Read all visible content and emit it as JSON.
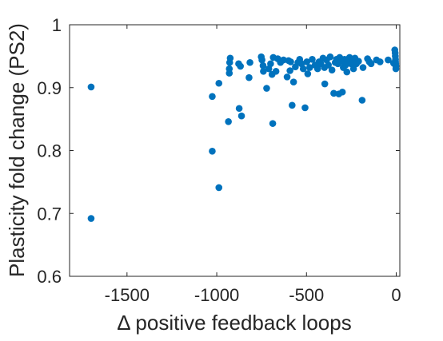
{
  "chart_data": {
    "type": "scatter",
    "title": "",
    "xlabel": "Δ positive feedback loops",
    "ylabel": "Plasticity fold change (PS2)",
    "xlim": [
      -1820,
      20
    ],
    "ylim": [
      0.6,
      1.0
    ],
    "xticks": [
      -1500,
      -1000,
      -500,
      0
    ],
    "xtick_labels": [
      "-1500",
      "-1000",
      "-500",
      "0"
    ],
    "yticks": [
      0.6,
      0.7,
      0.8,
      0.9,
      1.0
    ],
    "ytick_labels": [
      "0.6",
      "0.7",
      "0.8",
      "0.9",
      "1"
    ],
    "grid": false,
    "marker_color": "#0072BD",
    "series": [
      {
        "points": [
          [
            -1700,
            0.901
          ],
          [
            -1700,
            0.692
          ],
          [
            -1025,
            0.886
          ],
          [
            -1025,
            0.799
          ],
          [
            -988,
            0.907
          ],
          [
            -988,
            0.741
          ],
          [
            -935,
            0.846
          ],
          [
            -930,
            0.923
          ],
          [
            -930,
            0.93
          ],
          [
            -928,
            0.94
          ],
          [
            -925,
            0.947
          ],
          [
            -878,
            0.938
          ],
          [
            -875,
            0.867
          ],
          [
            -868,
            0.934
          ],
          [
            -862,
            0.855
          ],
          [
            -820,
            0.916
          ],
          [
            -815,
            0.94
          ],
          [
            -752,
            0.949
          ],
          [
            -748,
            0.944
          ],
          [
            -742,
            0.935
          ],
          [
            -740,
            0.926
          ],
          [
            -722,
            0.899
          ],
          [
            -710,
            0.93
          ],
          [
            -700,
            0.938
          ],
          [
            -692,
            0.921
          ],
          [
            -688,
            0.843
          ],
          [
            -685,
            0.948
          ],
          [
            -670,
            0.926
          ],
          [
            -660,
            0.946
          ],
          [
            -645,
            0.94
          ],
          [
            -628,
            0.944
          ],
          [
            -608,
            0.917
          ],
          [
            -600,
            0.943
          ],
          [
            -592,
            0.927
          ],
          [
            -588,
            0.941
          ],
          [
            -580,
            0.872
          ],
          [
            -572,
            0.909
          ],
          [
            -562,
            0.933
          ],
          [
            -548,
            0.94
          ],
          [
            -538,
            0.945
          ],
          [
            -528,
            0.938
          ],
          [
            -518,
            0.93
          ],
          [
            -508,
            0.868
          ],
          [
            -498,
            0.941
          ],
          [
            -493,
            0.922
          ],
          [
            -482,
            0.932
          ],
          [
            -468,
            0.945
          ],
          [
            -452,
            0.936
          ],
          [
            -438,
            0.93
          ],
          [
            -430,
            0.941
          ],
          [
            -420,
            0.938
          ],
          [
            -408,
            0.947
          ],
          [
            -400,
            0.932
          ],
          [
            -398,
            0.906
          ],
          [
            -388,
            0.944
          ],
          [
            -378,
            0.936
          ],
          [
            -368,
            0.949
          ],
          [
            -358,
            0.928
          ],
          [
            -348,
            0.891
          ],
          [
            -340,
            0.94
          ],
          [
            -333,
            0.945
          ],
          [
            -325,
            0.938
          ],
          [
            -320,
            0.89
          ],
          [
            -315,
            0.948
          ],
          [
            -305,
            0.942
          ],
          [
            -300,
            0.893
          ],
          [
            -295,
            0.932
          ],
          [
            -288,
            0.945
          ],
          [
            -282,
            0.936
          ],
          [
            -275,
            0.925
          ],
          [
            -268,
            0.941
          ],
          [
            -260,
            0.948
          ],
          [
            -252,
            0.938
          ],
          [
            -245,
            0.943
          ],
          [
            -238,
            0.93
          ],
          [
            -230,
            0.947
          ],
          [
            -222,
            0.938
          ],
          [
            -210,
            0.942
          ],
          [
            -190,
            0.88
          ],
          [
            -185,
            0.932
          ],
          [
            -160,
            0.946
          ],
          [
            -150,
            0.941
          ],
          [
            -140,
            0.938
          ],
          [
            -110,
            0.944
          ],
          [
            -90,
            0.941
          ],
          [
            -45,
            0.944
          ],
          [
            -15,
            0.939
          ],
          [
            -8,
            0.96
          ],
          [
            -6,
            0.955
          ],
          [
            -5,
            0.95
          ],
          [
            -4,
            0.945
          ],
          [
            -4,
            0.941
          ],
          [
            -3,
            0.938
          ],
          [
            -2,
            0.934
          ],
          [
            -2,
            0.93
          ]
        ]
      }
    ]
  }
}
